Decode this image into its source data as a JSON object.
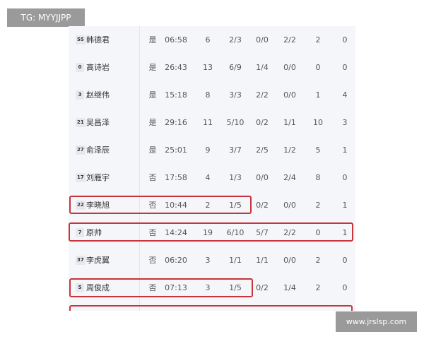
{
  "watermark_top": "TG: MYYJJPP",
  "watermark_bottom": "www.jrslsp.com",
  "highlight_color": "#c8343a",
  "rows": [
    {
      "num": "55",
      "name": "韩德君",
      "starter": "是",
      "time": "06:58",
      "pts": "6",
      "fg": "2/3",
      "tp": "0/0",
      "ft": "2/2",
      "reb": "2",
      "ast": "0"
    },
    {
      "num": "0",
      "name": "高诗岩",
      "starter": "是",
      "time": "26:43",
      "pts": "13",
      "fg": "6/9",
      "tp": "1/4",
      "ft": "0/0",
      "reb": "0",
      "ast": "0"
    },
    {
      "num": "3",
      "name": "赵继伟",
      "starter": "是",
      "time": "15:18",
      "pts": "8",
      "fg": "3/3",
      "tp": "2/2",
      "ft": "0/0",
      "reb": "1",
      "ast": "4"
    },
    {
      "num": "21",
      "name": "吴昌泽",
      "starter": "是",
      "time": "29:16",
      "pts": "11",
      "fg": "5/10",
      "tp": "0/2",
      "ft": "1/1",
      "reb": "10",
      "ast": "3"
    },
    {
      "num": "27",
      "name": "俞泽辰",
      "starter": "是",
      "time": "25:01",
      "pts": "9",
      "fg": "3/7",
      "tp": "2/5",
      "ft": "1/2",
      "reb": "5",
      "ast": "1"
    },
    {
      "num": "17",
      "name": "刘雁宇",
      "starter": "否",
      "time": "17:58",
      "pts": "4",
      "fg": "1/3",
      "tp": "0/0",
      "ft": "2/4",
      "reb": "8",
      "ast": "0"
    },
    {
      "num": "22",
      "name": "李晓旭",
      "starter": "否",
      "time": "10:44",
      "pts": "2",
      "fg": "1/5",
      "tp": "0/2",
      "ft": "0/0",
      "reb": "2",
      "ast": "1"
    },
    {
      "num": "7",
      "name": "原帅",
      "starter": "否",
      "time": "14:24",
      "pts": "19",
      "fg": "6/10",
      "tp": "5/7",
      "ft": "2/2",
      "reb": "0",
      "ast": "1"
    },
    {
      "num": "37",
      "name": "李虎翼",
      "starter": "否",
      "time": "06:20",
      "pts": "3",
      "fg": "1/1",
      "tp": "1/1",
      "ft": "0/0",
      "reb": "2",
      "ast": "0"
    },
    {
      "num": "5",
      "name": "周俊成",
      "starter": "否",
      "time": "07:13",
      "pts": "3",
      "fg": "1/5",
      "tp": "0/2",
      "ft": "1/4",
      "reb": "2",
      "ast": "0"
    }
  ]
}
